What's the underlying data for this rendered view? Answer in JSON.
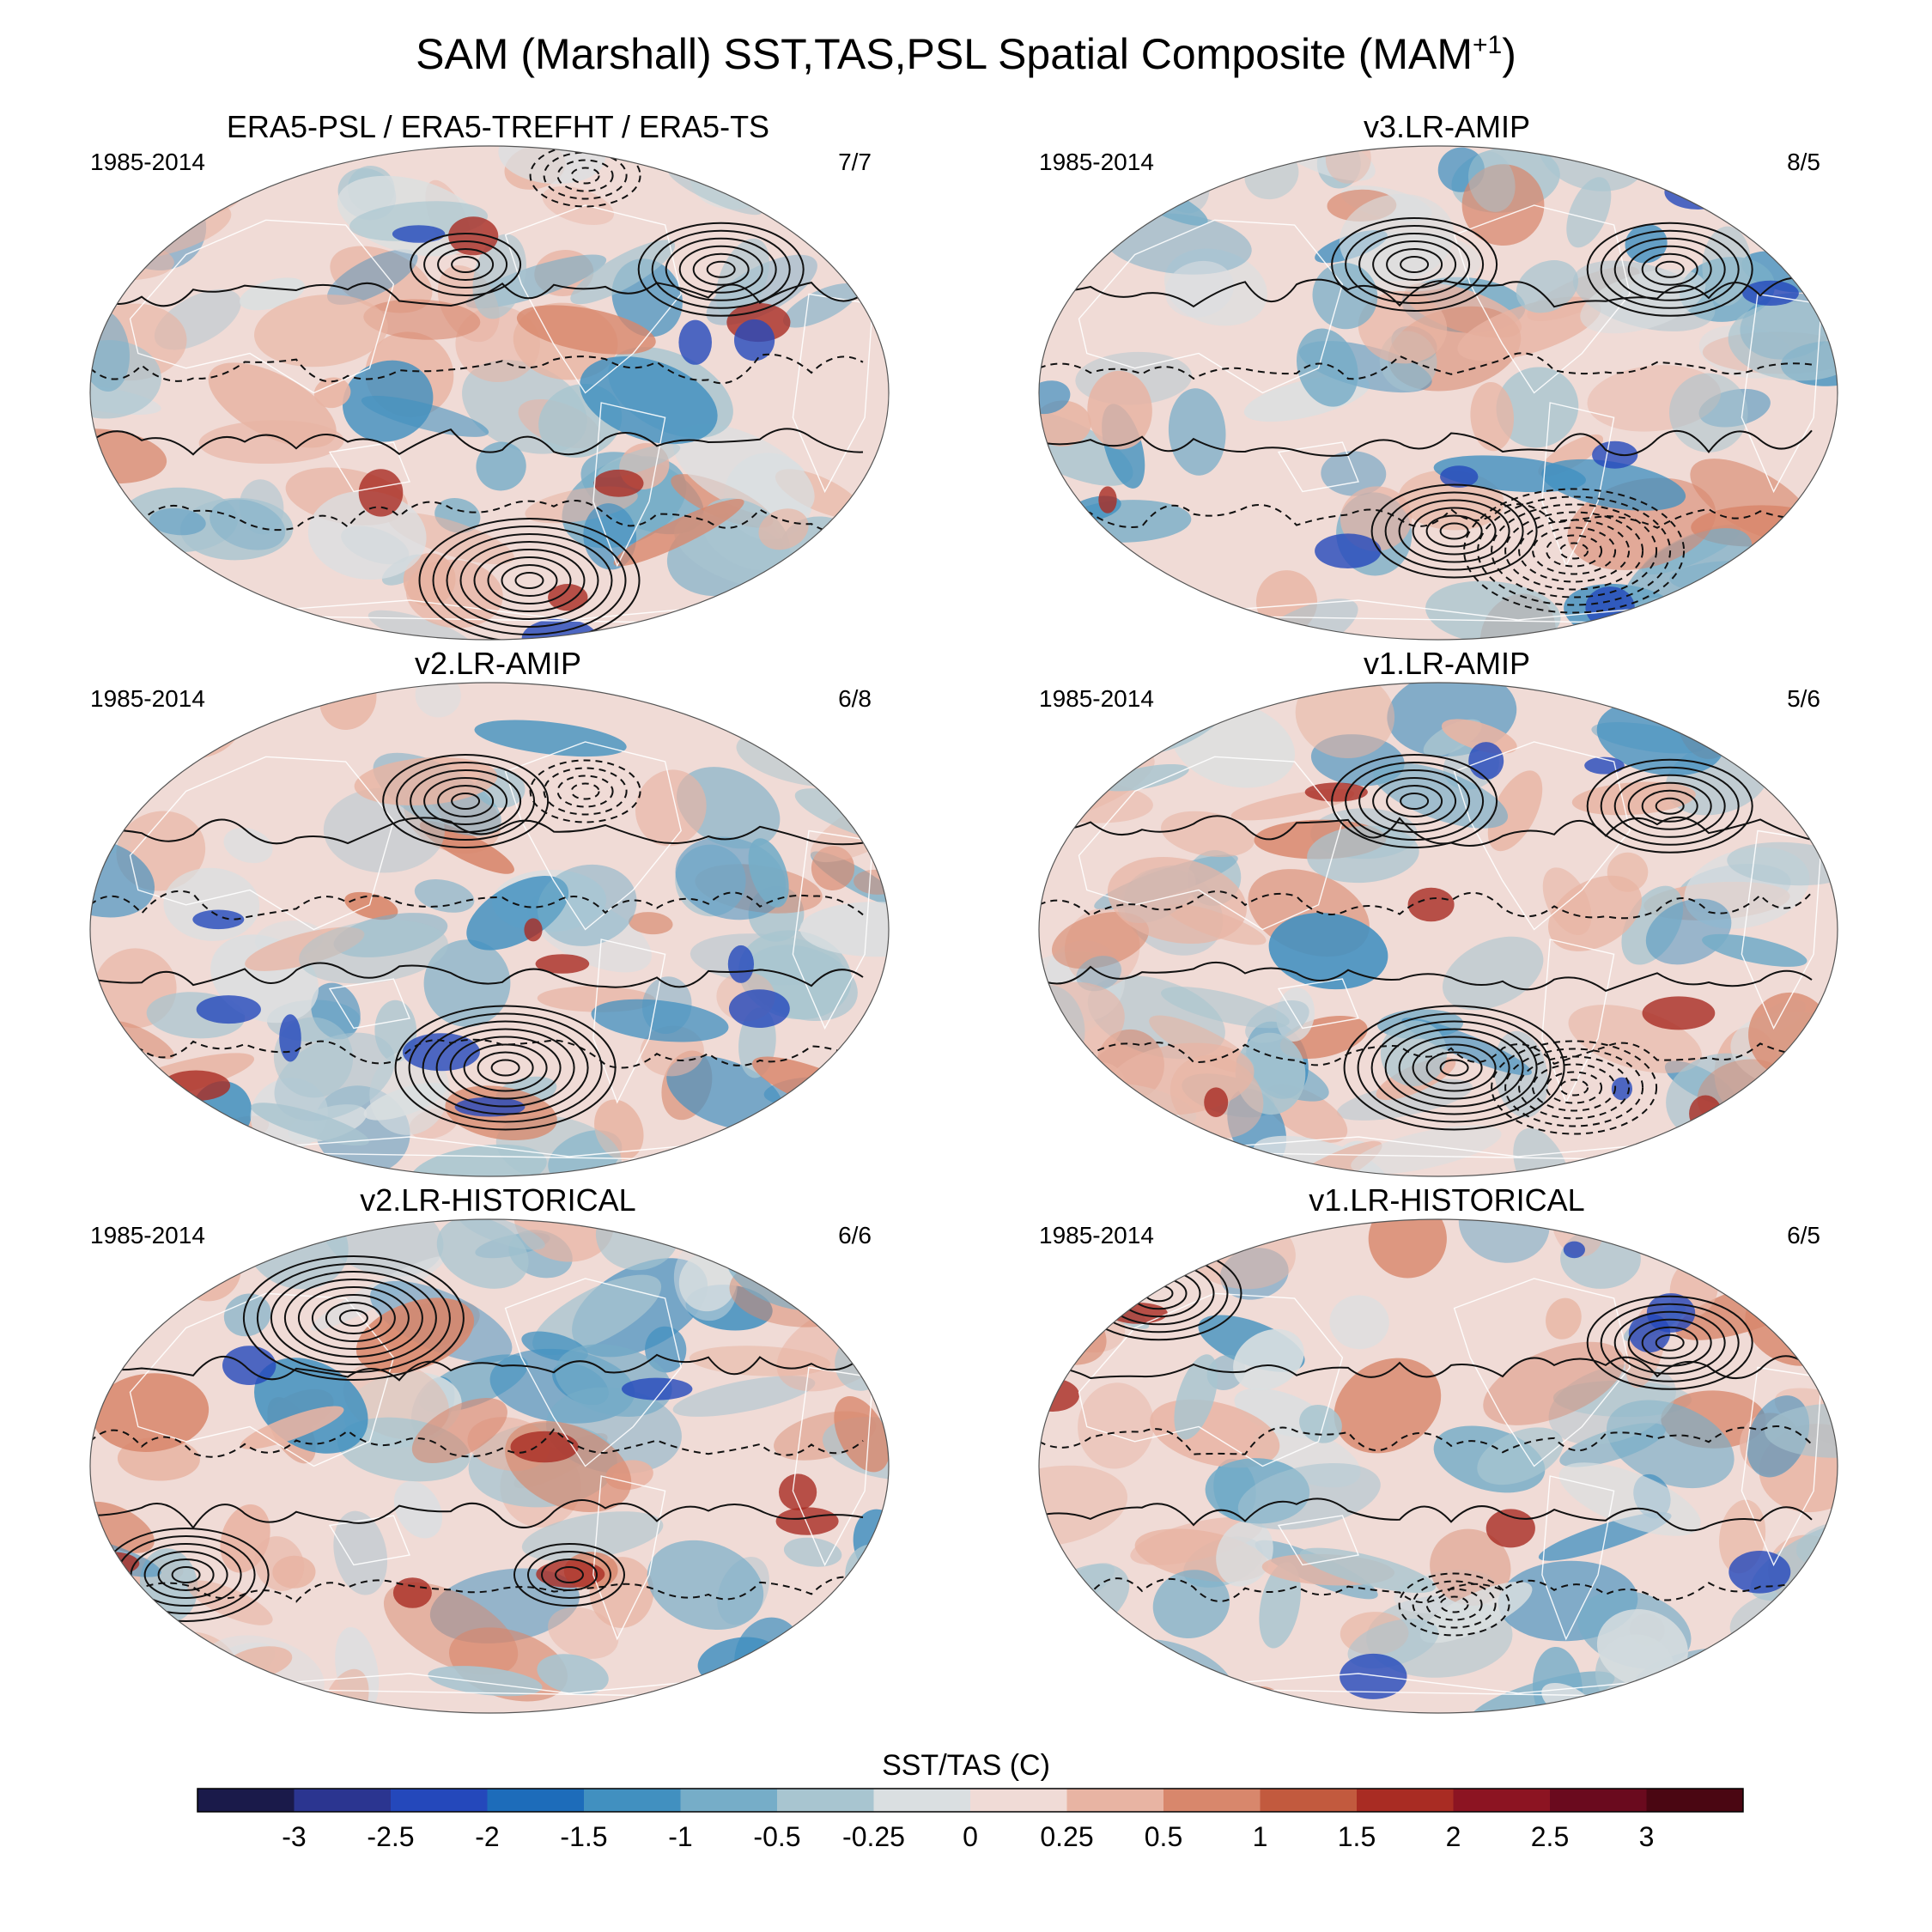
{
  "figure": {
    "title_main": "SAM (Marshall) SST,TAS,PSL Spatial Composite (MAM",
    "title_superscript": "+1",
    "title_close": ")"
  },
  "colors": {
    "background": "#ffffff",
    "frame": "#555555",
    "contour": "#111111"
  },
  "chart_data": [
    {
      "type": "heatmap",
      "projection": "Robinson (global map)",
      "title": "ERA5-PSL / ERA5-TREFHT / ERA5-TS",
      "period": "1985-2014",
      "count": "7/7",
      "position": "top-left",
      "fill_variable": "SST/TAS (C)",
      "contour_variable": "PSL (solid positive, dashed negative)",
      "anomaly_centers": [
        {
          "region": "Southern Ocean (Pacific sector)",
          "psl_sign": "positive",
          "strength": 3
        },
        {
          "region": "North Atlantic",
          "psl_sign": "positive",
          "strength": 2
        },
        {
          "region": "North Pacific",
          "psl_sign": "positive",
          "strength": 1
        },
        {
          "region": "Arctic",
          "psl_sign": "negative",
          "strength": 1
        }
      ]
    },
    {
      "type": "heatmap",
      "projection": "Robinson (global map)",
      "title": "v3.LR-AMIP",
      "period": "1985-2014",
      "count": "8/5",
      "position": "top-right",
      "fill_variable": "SST/TAS (C)",
      "contour_variable": "PSL (solid positive, dashed negative)",
      "anomaly_centers": [
        {
          "region": "North Pacific",
          "psl_sign": "positive",
          "strength": 2
        },
        {
          "region": "North Atlantic",
          "psl_sign": "positive",
          "strength": 2
        },
        {
          "region": "South Pacific",
          "psl_sign": "positive",
          "strength": 2
        },
        {
          "region": "Amundsen Sea",
          "psl_sign": "negative",
          "strength": 3
        }
      ]
    },
    {
      "type": "heatmap",
      "projection": "Robinson (global map)",
      "title": "v2.LR-AMIP",
      "period": "1985-2014",
      "count": "6/8",
      "position": "middle-left",
      "fill_variable": "SST/TAS (C)",
      "contour_variable": "PSL (solid positive, dashed negative)",
      "anomaly_centers": [
        {
          "region": "North Pacific",
          "psl_sign": "positive",
          "strength": 2
        },
        {
          "region": "South Pacific",
          "psl_sign": "positive",
          "strength": 3
        },
        {
          "region": "North America",
          "psl_sign": "negative",
          "strength": 1
        }
      ]
    },
    {
      "type": "heatmap",
      "projection": "Robinson (global map)",
      "title": "v1.LR-AMIP",
      "period": "1985-2014",
      "count": "5/6",
      "position": "middle-right",
      "fill_variable": "SST/TAS (C)",
      "contour_variable": "PSL (solid positive, dashed negative)",
      "anomaly_centers": [
        {
          "region": "North Pacific",
          "psl_sign": "positive",
          "strength": 2
        },
        {
          "region": "North Atlantic",
          "psl_sign": "positive",
          "strength": 2
        },
        {
          "region": "South Pacific",
          "psl_sign": "positive",
          "strength": 3
        },
        {
          "region": "Amundsen Sea",
          "psl_sign": "negative",
          "strength": 2
        }
      ]
    },
    {
      "type": "heatmap",
      "projection": "Robinson (global map)",
      "title": "v2.LR-HISTORICAL",
      "period": "1985-2014",
      "count": "6/6",
      "position": "bottom-left",
      "fill_variable": "SST/TAS (C)",
      "contour_variable": "PSL (solid positive, dashed negative)",
      "anomaly_centers": [
        {
          "region": "North Pacific / Siberia",
          "psl_sign": "positive",
          "strength": 3
        },
        {
          "region": "South Indian Ocean",
          "psl_sign": "positive",
          "strength": 2
        },
        {
          "region": "South Atlantic",
          "psl_sign": "positive",
          "strength": 1
        }
      ]
    },
    {
      "type": "heatmap",
      "projection": "Robinson (global map)",
      "title": "v1.LR-HISTORICAL",
      "period": "1985-2014",
      "count": "6/5",
      "position": "bottom-right",
      "fill_variable": "SST/TAS (C)",
      "contour_variable": "PSL (solid positive, dashed negative)",
      "anomaly_centers": [
        {
          "region": "Europe / West Siberia",
          "psl_sign": "positive",
          "strength": 2
        },
        {
          "region": "North Atlantic",
          "psl_sign": "positive",
          "strength": 2
        },
        {
          "region": "South Pacific",
          "psl_sign": "negative",
          "strength": 1
        }
      ]
    }
  ],
  "colorbar": {
    "title": "SST/TAS (C)",
    "colors": [
      "#1a1a4a",
      "#2b3590",
      "#2448bb",
      "#1d6cba",
      "#4190c0",
      "#76adc8",
      "#a8c5d0",
      "#dadfe1",
      "#f0dbd6",
      "#e8b4a3",
      "#d8876c",
      "#c25a3e",
      "#a92c23",
      "#8c1422",
      "#6a0a1e",
      "#4a0612"
    ],
    "ticks": [
      "-3",
      "-2.5",
      "-2",
      "-1.5",
      "-1",
      "-0.5",
      "-0.25",
      "0",
      "0.25",
      "0.5",
      "1",
      "1.5",
      "2",
      "2.5",
      "3"
    ]
  }
}
